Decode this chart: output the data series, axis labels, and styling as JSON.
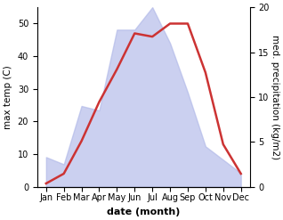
{
  "months": [
    "Jan",
    "Feb",
    "Mar",
    "Apr",
    "May",
    "Jun",
    "Jul",
    "Aug",
    "Sep",
    "Oct",
    "Nov",
    "Dec"
  ],
  "month_indices": [
    1,
    2,
    3,
    4,
    5,
    6,
    7,
    8,
    9,
    10,
    11,
    12
  ],
  "temperature": [
    1,
    4,
    14,
    26,
    36,
    47,
    46,
    50,
    50,
    35,
    13,
    4
  ],
  "precipitation": [
    3.3,
    2.5,
    9.0,
    8.5,
    17.5,
    17.5,
    20.0,
    16.0,
    10.5,
    4.5,
    3.0,
    1.5
  ],
  "temp_ylim": [
    0,
    55
  ],
  "precip_ylim": [
    0,
    20
  ],
  "temp_yticks": [
    0,
    10,
    20,
    30,
    40,
    50
  ],
  "precip_yticks": [
    0,
    5,
    10,
    15,
    20
  ],
  "line_color": "#cc3333",
  "fill_color": "#b0b8e8",
  "fill_alpha": 0.65,
  "line_width": 1.8,
  "xlabel": "date (month)",
  "ylabel_left": "max temp (C)",
  "ylabel_right": "med. precipitation (kg/m2)",
  "bg_color": "#ffffff",
  "xlabel_fontsize": 8,
  "ylabel_fontsize": 7.5,
  "tick_fontsize": 7,
  "xlim": [
    0.5,
    12.5
  ]
}
